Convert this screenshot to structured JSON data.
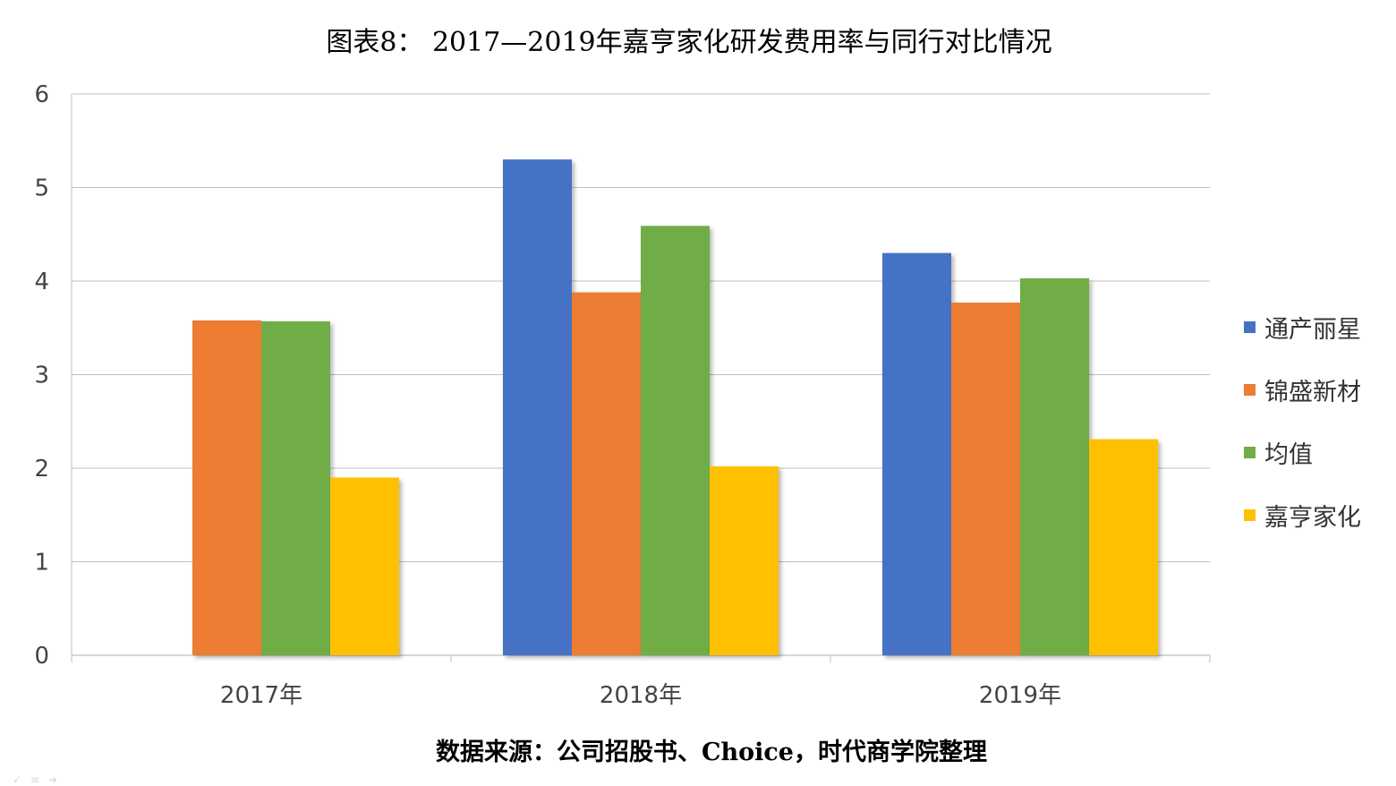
{
  "chart_data": {
    "type": "bar",
    "title": "图表8： 2017—2019年嘉亨家化研发费用率与同行对比情况",
    "source_note": "数据来源：公司招股书、Choice，时代商学院整理",
    "categories": [
      "2017年",
      "2018年",
      "2019年"
    ],
    "series": [
      {
        "name": "通产丽星",
        "color": "#4472C4",
        "values": [
          null,
          5.3,
          4.3
        ]
      },
      {
        "name": "锦盛新材",
        "color": "#ED7D31",
        "values": [
          3.58,
          3.88,
          3.77
        ]
      },
      {
        "name": "均值",
        "color": "#70AD47",
        "values": [
          3.57,
          4.59,
          4.03
        ]
      },
      {
        "name": "嘉亨家化",
        "color": "#FFC000",
        "values": [
          1.9,
          2.02,
          2.31
        ]
      }
    ],
    "ylim": [
      0,
      6
    ],
    "yticks": [
      0,
      1,
      2,
      3,
      4,
      5,
      6
    ],
    "grid": true,
    "legend_position": "right",
    "xlabel": "",
    "ylabel": ""
  }
}
